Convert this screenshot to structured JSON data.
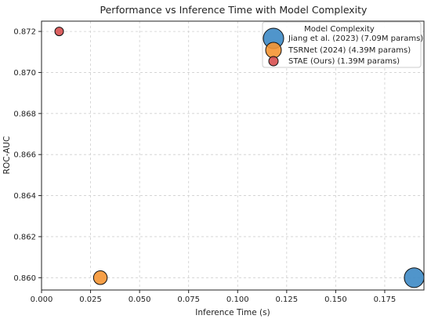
{
  "chart_data": {
    "type": "scatter",
    "title": "Performance vs Inference Time with Model Complexity",
    "xlabel": "Inference Time (s)",
    "ylabel": "ROC-AUC",
    "xlim": [
      0.0,
      0.195
    ],
    "ylim": [
      0.8594,
      0.8725
    ],
    "xticks": [
      "0.000",
      "0.025",
      "0.050",
      "0.075",
      "0.100",
      "0.125",
      "0.150",
      "0.175"
    ],
    "yticks": [
      "0.860",
      "0.862",
      "0.864",
      "0.866",
      "0.868",
      "0.870",
      "0.872"
    ],
    "grid": true,
    "legend_title": "Model Complexity",
    "legend_position": "top-right",
    "series": [
      {
        "name": "Jiang et al. (2023) (7.09M params)",
        "x": 0.19,
        "y": 0.86,
        "params_m": 7.09,
        "color": "#3d8ac5"
      },
      {
        "name": "TSRNet (2024) (4.39M params)",
        "x": 0.03,
        "y": 0.86,
        "params_m": 4.39,
        "color": "#f59533"
      },
      {
        "name": "STAE (Ours) (1.39M params)",
        "x": 0.009,
        "y": 0.872,
        "params_m": 1.39,
        "color": "#d85050"
      }
    ]
  }
}
